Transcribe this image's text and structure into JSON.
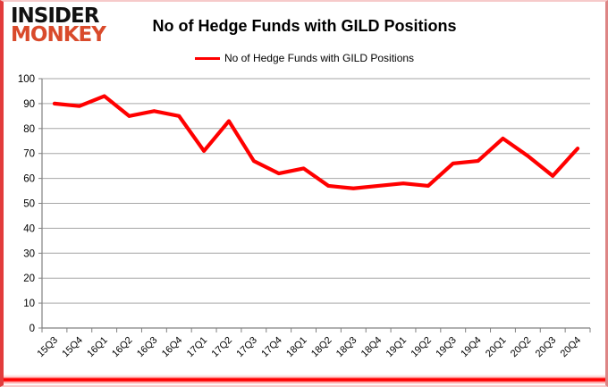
{
  "logo": {
    "line1": "INSIDER",
    "line2": "MONKEY"
  },
  "header": {
    "title": "No of Hedge Funds with GILD Positions"
  },
  "legend": {
    "label": "No of Hedge Funds with GILD Positions",
    "line_color": "#ff0000"
  },
  "chart_data": {
    "type": "line",
    "title": "No of Hedge Funds with GILD Positions",
    "categories": [
      "15Q3",
      "15Q4",
      "16Q1",
      "16Q2",
      "16Q3",
      "16Q4",
      "17Q1",
      "17Q2",
      "17Q3",
      "17Q4",
      "18Q1",
      "18Q2",
      "18Q3",
      "18Q4",
      "19Q1",
      "19Q2",
      "19Q3",
      "19Q4",
      "20Q1",
      "20Q2",
      "20Q3",
      "20Q4"
    ],
    "values": [
      90,
      89,
      93,
      85,
      87,
      85,
      71,
      83,
      67,
      62,
      64,
      57,
      56,
      57,
      58,
      57,
      66,
      67,
      76,
      69,
      61,
      72
    ],
    "ylim": [
      0,
      100
    ],
    "yticks": [
      0,
      10,
      20,
      30,
      40,
      50,
      60,
      70,
      80,
      90,
      100
    ],
    "grid": true,
    "legend_position": "top",
    "line_color": "#ff0000",
    "gridline_color": "#a6a6a6",
    "axis_color": "#808080"
  },
  "colors": {
    "accent_red": "#ff0000",
    "logo_red": "#d94a2b",
    "border_pink": "#f6caca",
    "border_red": "#e23b3b"
  }
}
